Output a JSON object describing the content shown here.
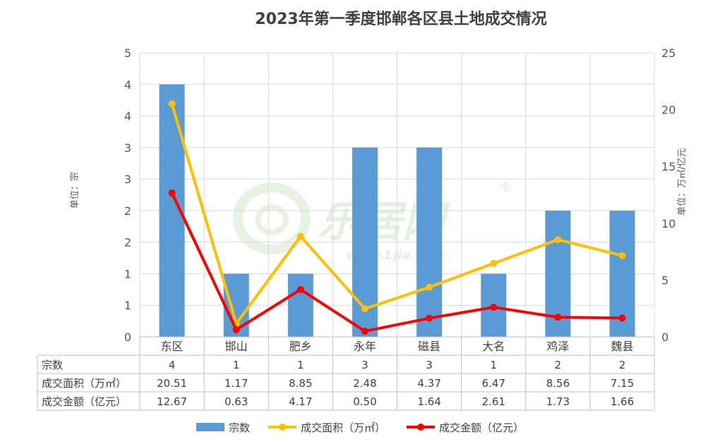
{
  "watermark": {
    "logo": "乐居网",
    "url": "www.Ljia.com",
    "reg": "®"
  },
  "chart_data": {
    "type": "bar",
    "title": "2023年第一季度邯郸各区县土地成交情况",
    "categories": [
      "东区",
      "邯山",
      "肥乡",
      "永年",
      "磁县",
      "大名",
      "鸡泽",
      "魏县"
    ],
    "y_left": {
      "label": "单位：宗",
      "ylim": [
        0,
        4.5
      ],
      "ticks": [
        0,
        0.5,
        1,
        1.5,
        2,
        2.5,
        3,
        3.5,
        4,
        4.5
      ],
      "tick_labels": [
        "0",
        "1",
        "1",
        "2",
        "2",
        "3",
        "3",
        "4",
        "4",
        "5"
      ]
    },
    "y_right": {
      "label": "单位：万㎡/亿元",
      "ylim": [
        0,
        25
      ],
      "ticks": [
        0,
        5,
        10,
        15,
        20,
        25
      ],
      "tick_labels": [
        "0",
        "5",
        "10",
        "15",
        "20",
        "25"
      ]
    },
    "grid": true,
    "legend_position": "bottom",
    "series": [
      {
        "name": "宗数",
        "type": "bar",
        "axis": "left",
        "color": "#5b9bd5",
        "values": [
          4,
          1,
          1,
          3,
          3,
          1,
          2,
          2
        ],
        "display": [
          "4",
          "1",
          "1",
          "3",
          "3",
          "1",
          "2",
          "2"
        ]
      },
      {
        "name": "成交面积（万㎡）",
        "type": "line",
        "axis": "right",
        "color": "#ffc000",
        "values": [
          20.51,
          1.17,
          8.85,
          2.48,
          4.37,
          6.47,
          8.56,
          7.15
        ],
        "display": [
          "20.51",
          "1.17",
          "8.85",
          "2.48",
          "4.37",
          "6.47",
          "8.56",
          "7.15"
        ]
      },
      {
        "name": "成交金额（亿元）",
        "type": "line",
        "axis": "right",
        "color": "#ff0000",
        "values": [
          12.67,
          0.63,
          4.17,
          0.5,
          1.64,
          2.61,
          1.73,
          1.66
        ],
        "display": [
          "12.67",
          "0.63",
          "4.17",
          "0.50",
          "1.64",
          "2.61",
          "1.73",
          "1.66"
        ]
      }
    ]
  }
}
